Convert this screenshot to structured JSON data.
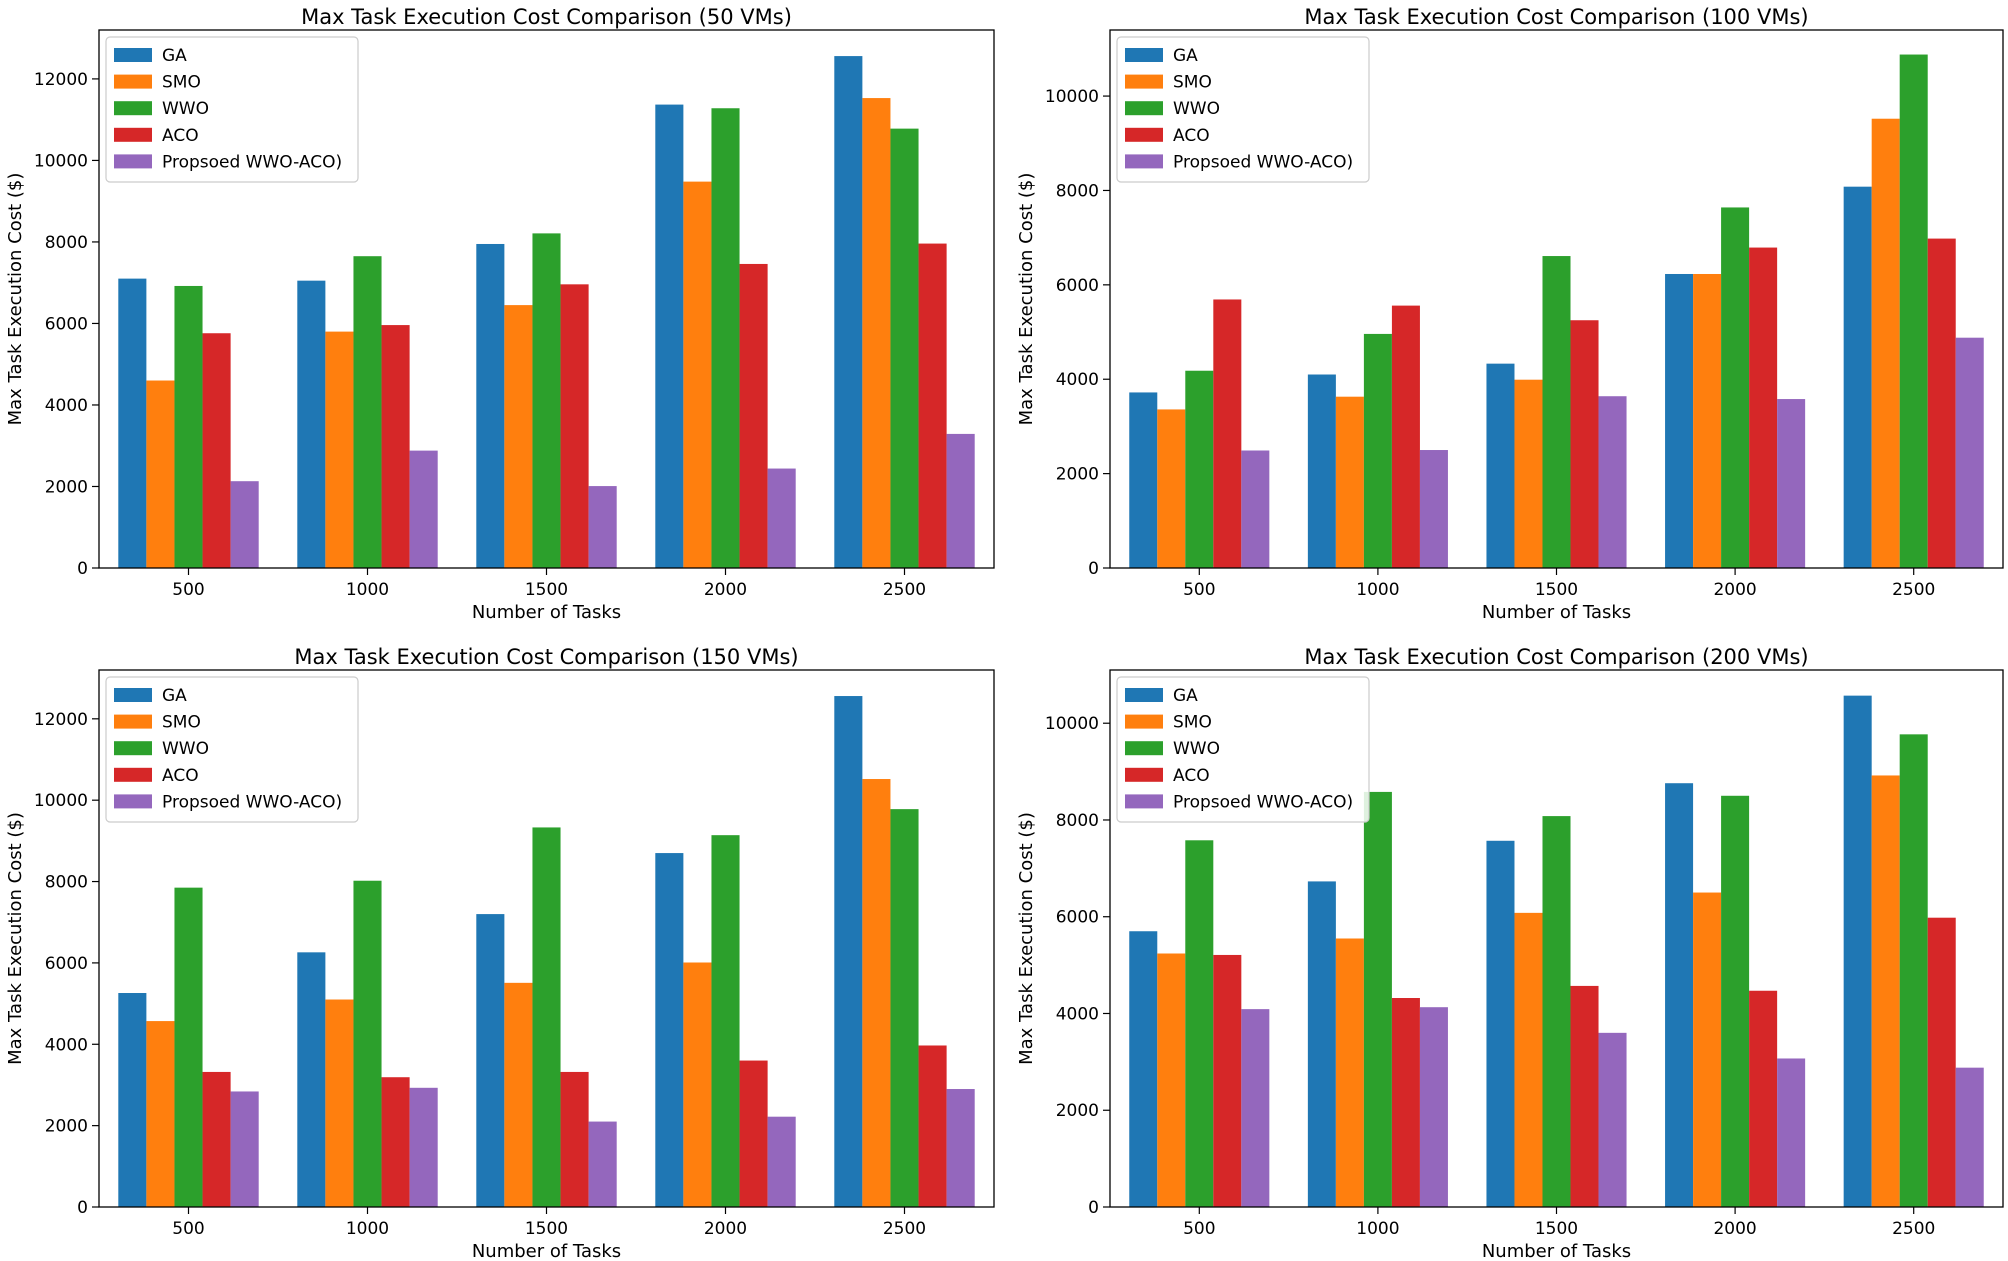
{
  "series_colors": [
    "#1f77b4",
    "#ff7f0e",
    "#2ca02c",
    "#d62728",
    "#9467bd"
  ],
  "chart_data": [
    {
      "type": "bar",
      "title": "Max Task Execution Cost Comparison (50 VMs)",
      "xlabel": "Number of Tasks",
      "ylabel": "Max Task Execution Cost ($)",
      "categories": [
        "500",
        "1000",
        "1500",
        "2000",
        "2500"
      ],
      "ylim": [
        0,
        13200
      ],
      "yticks": [
        0,
        2000,
        4000,
        6000,
        8000,
        10000,
        12000
      ],
      "legend_position": "top-left",
      "series": [
        {
          "name": "GA",
          "values": [
            7100,
            7050,
            7950,
            11370,
            12560
          ]
        },
        {
          "name": "SMO",
          "values": [
            4600,
            5800,
            6450,
            9480,
            11530
          ]
        },
        {
          "name": "WWO",
          "values": [
            6920,
            7650,
            8210,
            11280,
            10780
          ]
        },
        {
          "name": "ACO",
          "values": [
            5760,
            5960,
            6960,
            7460,
            7960
          ]
        },
        {
          "name": "Propsoed WWO-ACO)",
          "values": [
            2130,
            2880,
            2010,
            2440,
            3290
          ]
        }
      ]
    },
    {
      "type": "bar",
      "title": "Max Task Execution Cost Comparison (100 VMs)",
      "xlabel": "Number of Tasks",
      "ylabel": "Max Task Execution Cost ($)",
      "categories": [
        "500",
        "1000",
        "1500",
        "2000",
        "2500"
      ],
      "ylim": [
        0,
        11400
      ],
      "yticks": [
        0,
        2000,
        4000,
        6000,
        8000,
        10000
      ],
      "legend_position": "top-left",
      "series": [
        {
          "name": "GA",
          "values": [
            3720,
            4100,
            4330,
            6230,
            8080
          ]
        },
        {
          "name": "SMO",
          "values": [
            3360,
            3630,
            3990,
            6230,
            9520
          ]
        },
        {
          "name": "WWO",
          "values": [
            4180,
            4960,
            6610,
            7640,
            10880
          ]
        },
        {
          "name": "ACO",
          "values": [
            5690,
            5560,
            5250,
            6790,
            6980
          ]
        },
        {
          "name": "Propsoed WWO-ACO)",
          "values": [
            2490,
            2500,
            3640,
            3580,
            4880
          ]
        }
      ]
    },
    {
      "type": "bar",
      "title": "Max Task Execution Cost Comparison (150 VMs)",
      "xlabel": "Number of Tasks",
      "ylabel": "Max Task Execution Cost ($)",
      "categories": [
        "500",
        "1000",
        "1500",
        "2000",
        "2500"
      ],
      "ylim": [
        0,
        13200
      ],
      "yticks": [
        0,
        2000,
        4000,
        6000,
        8000,
        10000,
        12000
      ],
      "legend_position": "top-left",
      "series": [
        {
          "name": "GA",
          "values": [
            5260,
            6260,
            7200,
            8700,
            12560
          ]
        },
        {
          "name": "SMO",
          "values": [
            4570,
            5100,
            5510,
            6010,
            10520
          ]
        },
        {
          "name": "WWO",
          "values": [
            7850,
            8020,
            9330,
            9140,
            9780
          ]
        },
        {
          "name": "ACO",
          "values": [
            3320,
            3190,
            3320,
            3600,
            3970
          ]
        },
        {
          "name": "Propsoed WWO-ACO)",
          "values": [
            2840,
            2930,
            2100,
            2220,
            2900
          ]
        }
      ]
    },
    {
      "type": "bar",
      "title": "Max Task Execution Cost Comparison (200 VMs)",
      "xlabel": "Number of Tasks",
      "ylabel": "Max Task Execution Cost ($)",
      "categories": [
        "500",
        "1000",
        "1500",
        "2000",
        "2500"
      ],
      "ylim": [
        0,
        11100
      ],
      "yticks": [
        0,
        2000,
        4000,
        6000,
        8000,
        10000
      ],
      "legend_position": "top-left",
      "series": [
        {
          "name": "GA",
          "values": [
            5700,
            6730,
            7570,
            8760,
            10570
          ]
        },
        {
          "name": "SMO",
          "values": [
            5240,
            5550,
            6080,
            6500,
            8920
          ]
        },
        {
          "name": "WWO",
          "values": [
            7580,
            8580,
            8080,
            8500,
            9770
          ]
        },
        {
          "name": "ACO",
          "values": [
            5210,
            4320,
            4570,
            4470,
            5980
          ]
        },
        {
          "name": "Propsoed WWO-ACO)",
          "values": [
            4090,
            4130,
            3600,
            3070,
            2880
          ]
        }
      ]
    }
  ]
}
